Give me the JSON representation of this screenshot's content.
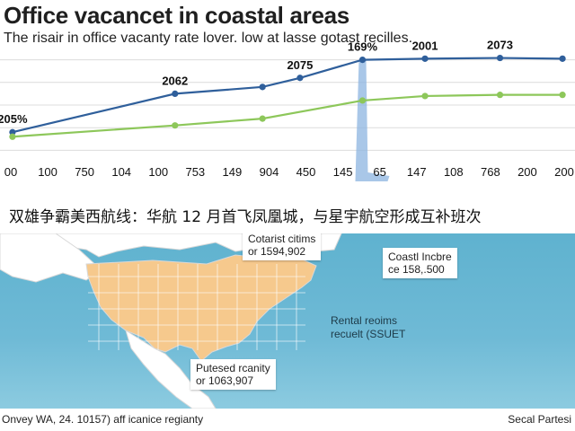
{
  "chart_data": {
    "type": "line",
    "title": "Office vacancet in coastal areas",
    "subtitle": "The risair in office vacanty rate lover. low at lasse gotast recilles.",
    "x": [
      "00",
      "100",
      "750",
      "104",
      "100",
      "753",
      "149",
      "904",
      "450",
      "145",
      "65",
      "147",
      "108",
      "768",
      "200",
      "200"
    ],
    "series": [
      {
        "name": "",
        "color": "#2f5f9b",
        "points": [
          [
            0.5,
            28
          ],
          [
            7.0,
            45
          ],
          [
            10.5,
            48
          ],
          [
            12.0,
            52
          ],
          [
            14.5,
            60
          ],
          [
            17.0,
            60.5
          ],
          [
            20.0,
            60.8
          ],
          [
            22.5,
            60.5
          ]
        ]
      },
      {
        "name": "",
        "color": "#8dc75a",
        "points": [
          [
            0.5,
            26
          ],
          [
            7.0,
            31
          ],
          [
            10.5,
            34
          ],
          [
            14.5,
            42
          ],
          [
            17.0,
            44
          ],
          [
            20.0,
            44.5
          ],
          [
            22.5,
            44.5
          ]
        ]
      }
    ],
    "data_labels": [
      {
        "text": "205%",
        "x": 0.5,
        "y": 28
      },
      {
        "text": "2062",
        "x": 7.0,
        "y": 45
      },
      {
        "text": "2075",
        "x": 12.0,
        "y": 52
      },
      {
        "text": "169%",
        "x": 14.5,
        "y": 60
      },
      {
        "text": "2001",
        "x": 17.0,
        "y": 60.5
      },
      {
        "text": "2073",
        "x": 20.0,
        "y": 60.8
      }
    ],
    "xlim": [
      0,
      23
    ],
    "ylim": [
      15,
      65
    ],
    "highlight": {
      "x": 14.5,
      "color": "#8cb4e0"
    },
    "grid": true
  },
  "banner": {
    "text": "双雄争霸美西航线：华航 12 月首飞凤凰城，与星宇航空形成互补班次"
  },
  "map": {
    "callouts": [
      {
        "line1": "Cotarist citims",
        "line2": "or 1594,902"
      },
      {
        "line1": "Coastl Incbre",
        "line2": "ce 158,.500"
      },
      {
        "line1": "Putesed rcanity",
        "line2": "or 1063,907"
      }
    ],
    "note": {
      "line1": "Rental reoims",
      "line2": "recuelt (SSUET"
    },
    "land_color": "#ffffff",
    "region_color": "#f6c98d",
    "sea_color": "#6fbad6"
  },
  "footer": {
    "left": "Onvey WA, 24. 10157) aff icanice regianty",
    "right": "Secal Partesi"
  }
}
